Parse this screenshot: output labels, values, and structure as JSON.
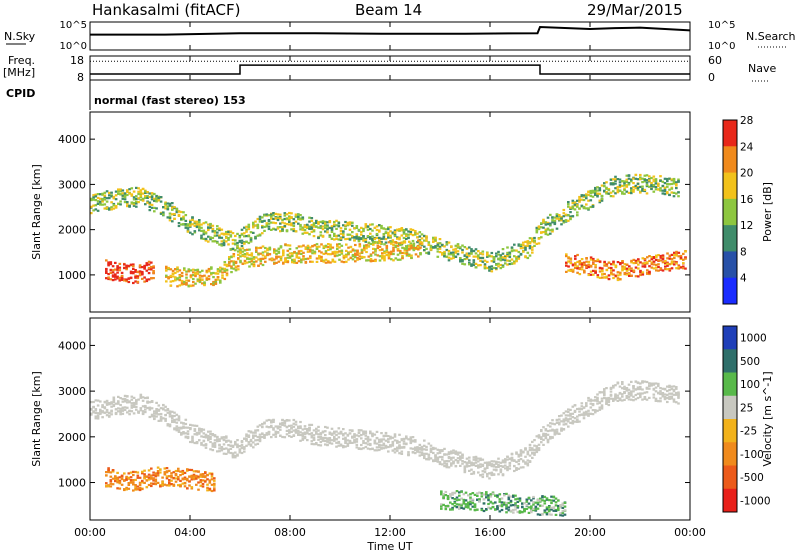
{
  "header": {
    "station": "Hankasalmi (fitACF)",
    "beam": "Beam 14",
    "date": "29/Mar/2015"
  },
  "colors": {
    "background": "#ffffff",
    "axis": "#000000"
  },
  "time_axis": {
    "label": "Time UT",
    "ticks": [
      "00:00",
      "04:00",
      "08:00",
      "12:00",
      "16:00",
      "20:00",
      "00:00"
    ],
    "range_hours": [
      0,
      24
    ]
  },
  "status_panels": {
    "noise": {
      "left_label": "N.Sky",
      "right_label": "N.Search",
      "left_ticks": [
        "10^5",
        "10^0"
      ],
      "right_ticks": [
        "10^5",
        "10^0"
      ],
      "sky_level_series_hours": [
        0,
        3,
        6,
        9,
        12,
        15,
        17.9,
        18,
        20,
        21,
        22,
        24
      ],
      "sky_level_series_values": [
        0.55,
        0.55,
        0.6,
        0.6,
        0.58,
        0.58,
        0.6,
        0.82,
        0.75,
        0.78,
        0.8,
        0.7
      ]
    },
    "frequency": {
      "left_label_top": "Freq.",
      "left_label_bottom": "[MHz]",
      "right_label": "Nave",
      "left_ticks": [
        "18",
        "8"
      ],
      "right_ticks": [
        "60",
        "0"
      ],
      "freq_steps": [
        {
          "from": 0,
          "to": 6,
          "level": 0.25
        },
        {
          "from": 6,
          "to": 18,
          "level": 0.62
        },
        {
          "from": 18,
          "to": 24,
          "level": 0.25
        }
      ],
      "nave_level": 0.78
    },
    "cpid": {
      "left_label": "CPID",
      "program": "normal (fast stereo) 153"
    }
  },
  "chart_data": [
    {
      "type": "heatmap",
      "title": "",
      "xlabel": "Time UT",
      "ylabel": "Slant Range [km]",
      "xlim": [
        0,
        24
      ],
      "ylim": [
        180,
        4600
      ],
      "yticks": [
        1000,
        2000,
        3000,
        4000
      ],
      "colorbar": {
        "label": "Power [dB]",
        "ticks": [
          "4",
          "8",
          "12",
          "16",
          "20",
          "24",
          "28"
        ],
        "colors": [
          "#1a2cff",
          "#2851a8",
          "#3f8c6a",
          "#8dc63f",
          "#f2c21b",
          "#f08a1c",
          "#e8281a"
        ]
      },
      "echo_bands": [
        {
          "name": "upper arc",
          "hours": [
            0,
            1,
            2,
            3,
            4,
            5,
            5.8,
            7,
            8,
            9,
            10,
            12,
            13,
            14,
            16,
            17.5,
            18,
            19,
            20,
            21,
            22,
            23.5
          ],
          "range_km": [
            2600,
            2700,
            2750,
            2500,
            2100,
            1900,
            1750,
            2200,
            2200,
            2050,
            2000,
            1900,
            1800,
            1600,
            1300,
            1600,
            2000,
            2400,
            2700,
            3000,
            3050,
            2950
          ],
          "power_db": 14
        },
        {
          "name": "low patch",
          "hours": [
            0.6,
            1,
            1.5,
            2,
            2.5
          ],
          "range_km": [
            1150,
            1100,
            1050,
            1050,
            1150
          ],
          "power_db": 26
        },
        {
          "name": "mid band",
          "hours": [
            3,
            4,
            5,
            6,
            8,
            10,
            12,
            13.2
          ],
          "range_km": [
            1000,
            950,
            1000,
            1400,
            1500,
            1500,
            1550,
            1600
          ],
          "power_db": 18
        },
        {
          "name": "late patches",
          "hours": [
            19,
            20,
            21,
            22,
            23,
            23.8
          ],
          "range_km": [
            1300,
            1200,
            1100,
            1200,
            1300,
            1350
          ],
          "power_db": 24
        }
      ]
    },
    {
      "type": "heatmap",
      "title": "",
      "xlabel": "Time UT",
      "ylabel": "Slant Range [km]",
      "xlim": [
        0,
        24
      ],
      "ylim": [
        180,
        4600
      ],
      "yticks": [
        1000,
        2000,
        3000,
        4000
      ],
      "colorbar": {
        "label": "Velocity [m s^-1]",
        "ticks": [
          "1000",
          "500",
          "100",
          "25",
          "-25",
          "-100",
          "-500",
          "-1000"
        ],
        "colors": [
          "#1f3fb8",
          "#2f6f6a",
          "#58b94a",
          "#c8c8c0",
          "#f2b21b",
          "#f08a1c",
          "#ec5a1a",
          "#e8201a"
        ]
      },
      "echo_bands": [
        {
          "name": "ground scatter arc",
          "hours": [
            0,
            1,
            2,
            3,
            4,
            5,
            5.8,
            7,
            8,
            9,
            10,
            12,
            13,
            14,
            16,
            17.5,
            18,
            19,
            20,
            21,
            22,
            23.5
          ],
          "range_km": [
            2600,
            2700,
            2750,
            2500,
            2100,
            1900,
            1750,
            2200,
            2200,
            2050,
            2000,
            1900,
            1800,
            1600,
            1300,
            1600,
            2000,
            2400,
            2700,
            3000,
            3050,
            2950
          ],
          "velocity": 0
        },
        {
          "name": "negative patch",
          "hours": [
            0.6,
            1,
            1.5,
            2,
            2.5,
            4,
            5
          ],
          "range_km": [
            1150,
            1100,
            1050,
            1050,
            1150,
            1100,
            1000
          ],
          "velocity": -120
        },
        {
          "name": "late green band",
          "hours": [
            14,
            15,
            16,
            17,
            18,
            19
          ],
          "range_km": [
            650,
            620,
            600,
            550,
            520,
            500
          ],
          "velocity": 110
        }
      ]
    }
  ]
}
